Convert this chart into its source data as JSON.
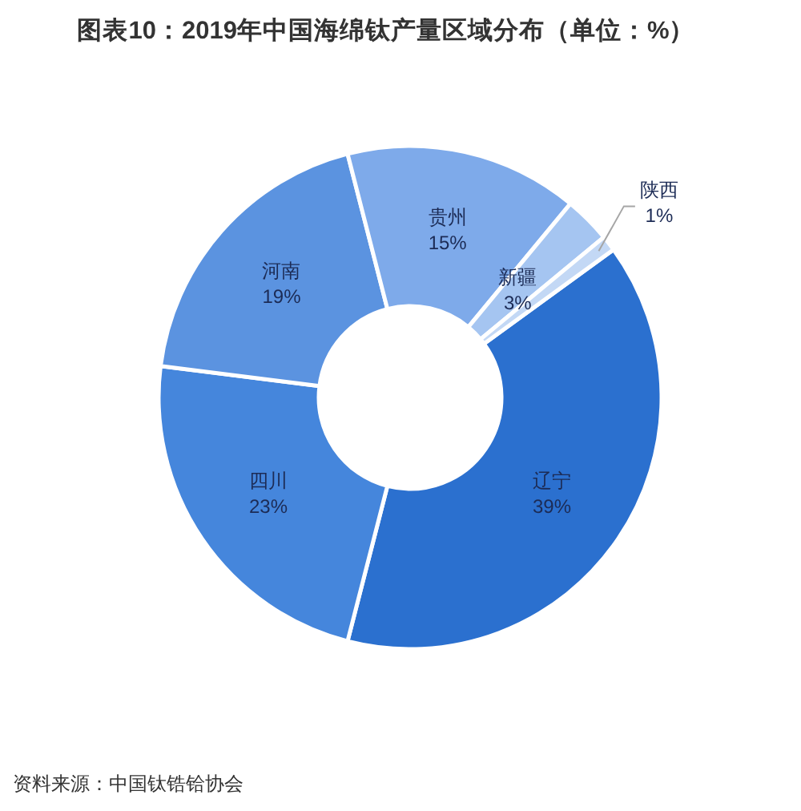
{
  "chart_data": {
    "type": "donut",
    "title": "图表10：2019年中国海绵钛产量区域分布（单位：%）",
    "categories": [
      "辽宁",
      "四川",
      "河南",
      "贵州",
      "新疆",
      "陕西"
    ],
    "values": [
      39,
      23,
      19,
      15,
      3,
      1
    ],
    "colors": [
      "#2b70cf",
      "#4586dc",
      "#5b93e0",
      "#7eaaea",
      "#a5c5f1",
      "#c3d8f5"
    ],
    "value_labels": [
      "39%",
      "23%",
      "19%",
      "15%",
      "3%",
      "1%"
    ],
    "annotations": [
      "资料来源：中国钛锆铪协会"
    ]
  }
}
